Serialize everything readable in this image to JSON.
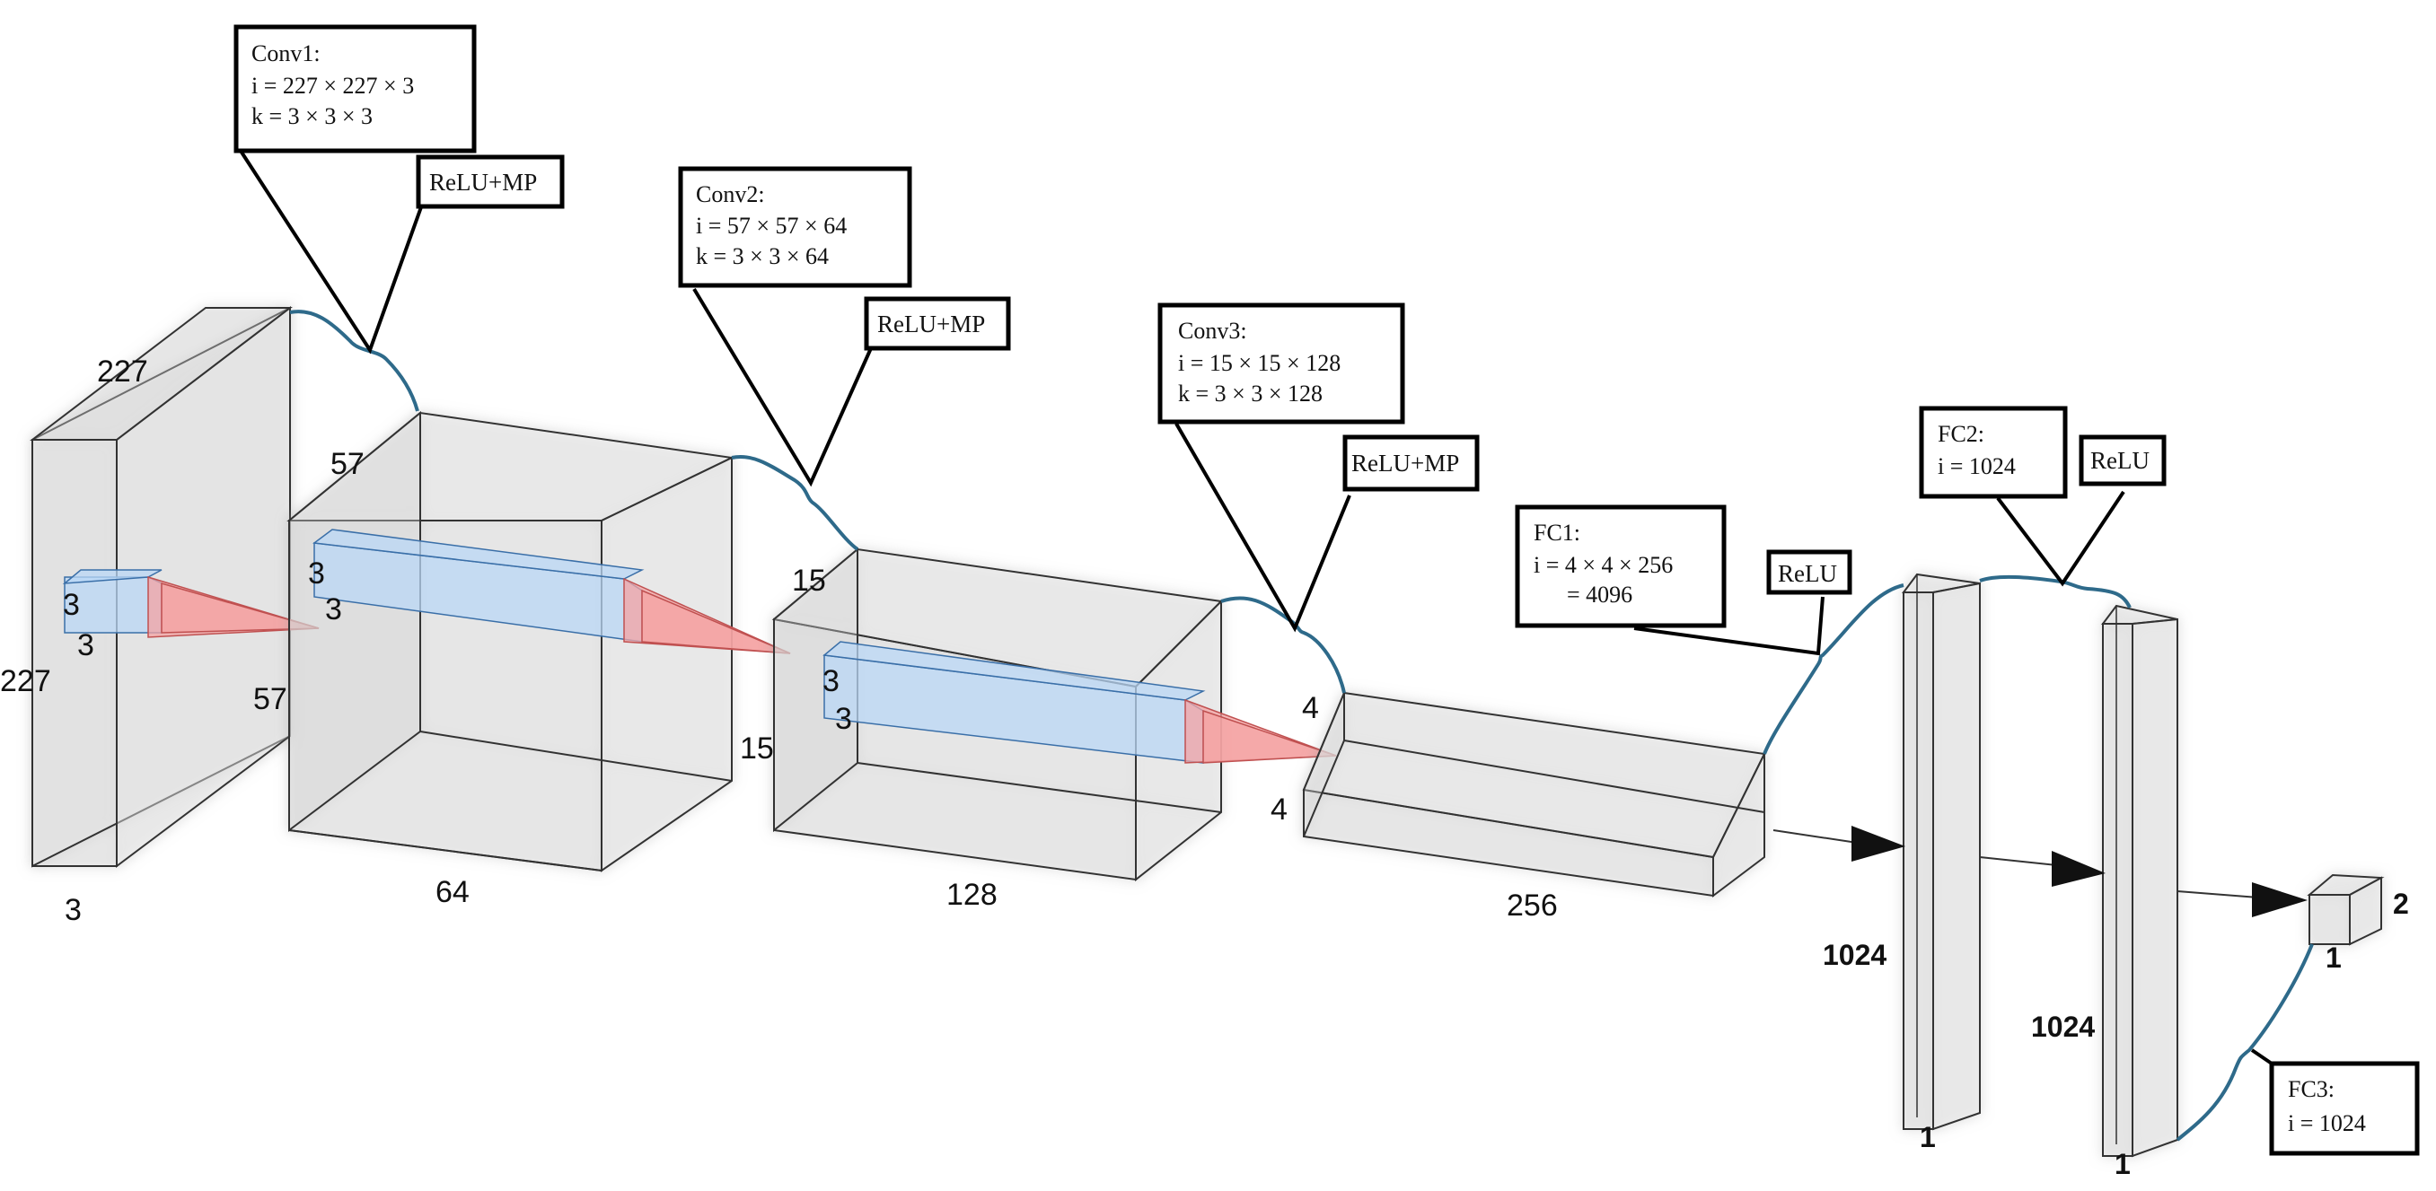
{
  "conv1": {
    "title": "Conv1:",
    "line_i": "i = 227 × 227 × 3",
    "line_k": "k = 3 × 3 × 3",
    "act": "ReLU+MP",
    "input_w": "227",
    "input_h": "227",
    "input_d": "3",
    "kernel_a": "3",
    "kernel_b": "3"
  },
  "conv2": {
    "title": "Conv2:",
    "line_i": "i = 57 × 57 × 64",
    "line_k": "k = 3 × 3 × 64",
    "act": "ReLU+MP",
    "input_w": "57",
    "input_h": "57",
    "input_d": "64",
    "kernel_a": "3",
    "kernel_b": "3"
  },
  "conv3": {
    "title": "Conv3:",
    "line_i": "i = 15 × 15 × 128",
    "line_k": "k = 3 × 3 × 128",
    "act": "ReLU+MP",
    "input_w": "15",
    "input_h": "15",
    "input_d": "128",
    "kernel_a": "3",
    "kernel_b": "3"
  },
  "fc1": {
    "title": "FC1:",
    "line_i": "i = 4 × 4 × 256",
    "line_eq": "= 4096",
    "act": "ReLU",
    "input_w": "4",
    "input_h": "4",
    "input_d": "256"
  },
  "fc2": {
    "title": "FC2:",
    "line_i": "i = 1024",
    "act": "ReLU",
    "in_len": "1024",
    "in_w": "1"
  },
  "fc3": {
    "title": "FC3:",
    "line_i": "i = 1024",
    "in_len": "1024",
    "in_w": "1"
  },
  "output": {
    "size": "2",
    "w": "1"
  }
}
